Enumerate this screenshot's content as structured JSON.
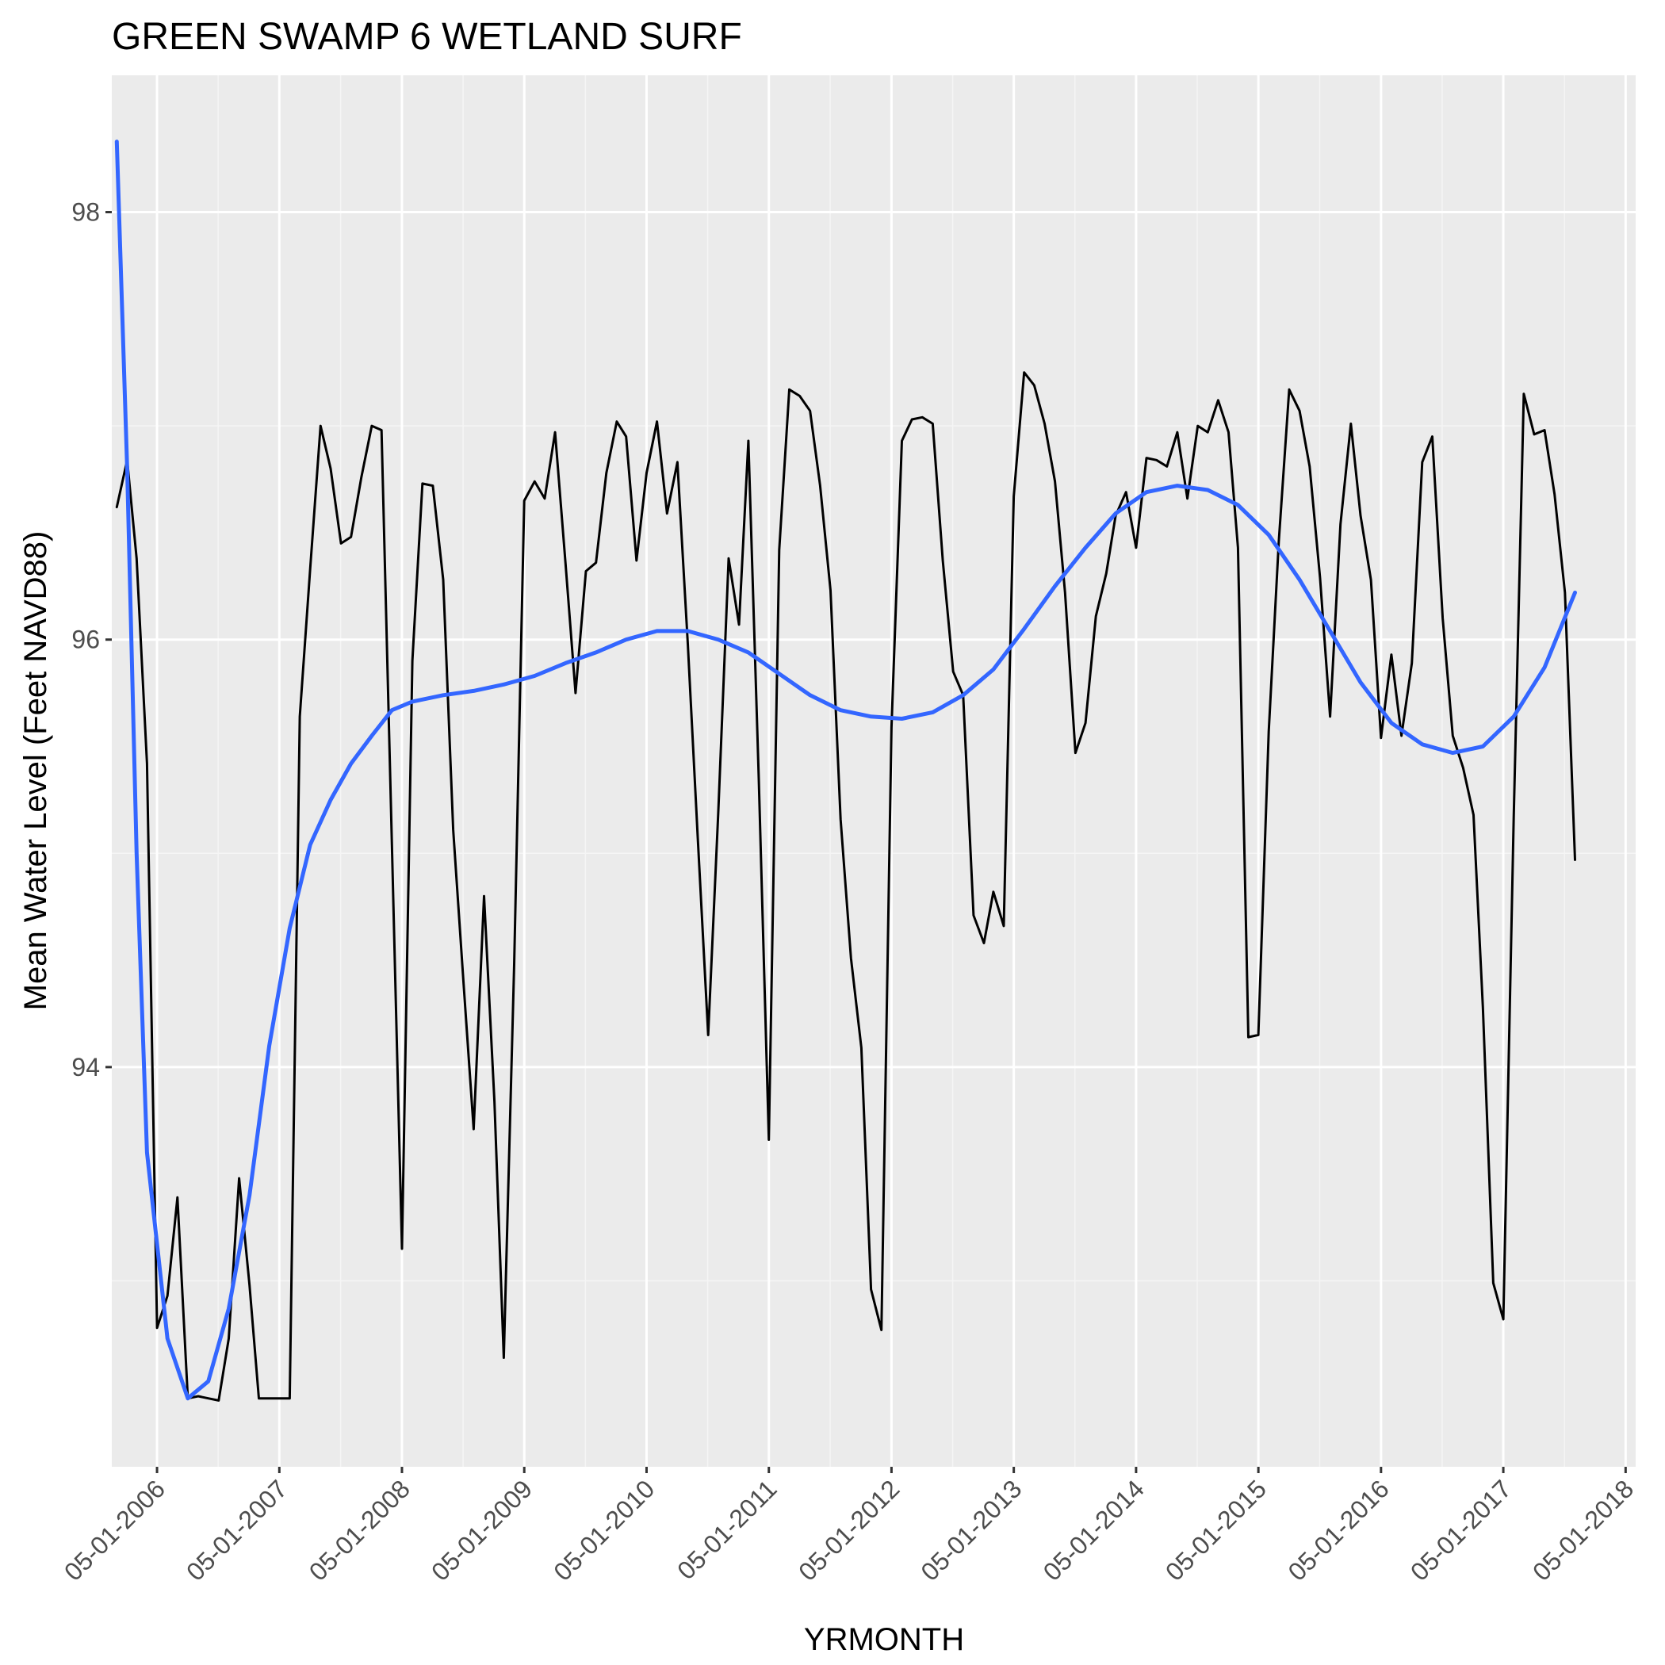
{
  "chart_data": {
    "type": "line",
    "title": "GREEN SWAMP 6 WETLAND SURF",
    "xlabel": "YRMONTH",
    "ylabel": "Mean Water Level (Feet NAVD88)",
    "x_tick_labels": [
      "05-01-2006",
      "05-01-2007",
      "05-01-2008",
      "05-01-2009",
      "05-01-2010",
      "05-01-2011",
      "05-01-2012",
      "05-01-2013",
      "05-01-2014",
      "05-01-2015",
      "05-01-2016",
      "05-01-2017",
      "05-01-2018"
    ],
    "y_ticks": [
      94,
      96,
      98
    ],
    "ylim": [
      92.13,
      98.64
    ],
    "xlim": [
      "2005-12-17",
      "2018-05-31"
    ],
    "grid": true,
    "colors": {
      "panel_background": "#EBEBEB",
      "grid_major": "#FFFFFF",
      "grid_minor": "#F5F5F5",
      "observed_line": "#000000",
      "smooth_line": "#3366FF",
      "tick_text": "#4D4D4D",
      "tick_mark": "#333333"
    },
    "series": [
      {
        "type": "line",
        "x": [
          "2006-01-01",
          "2006-02-01",
          "2006-03-01",
          "2006-04-01",
          "2006-05-01",
          "2006-06-01",
          "2006-07-01",
          "2006-08-01",
          "2006-09-01",
          "2006-10-01",
          "2006-11-01",
          "2006-12-01",
          "2007-01-01",
          "2007-02-01",
          "2007-03-01",
          "2007-04-01",
          "2007-05-01",
          "2007-06-01",
          "2007-07-01",
          "2007-08-01",
          "2007-09-01",
          "2007-10-01",
          "2007-11-01",
          "2007-12-01",
          "2008-01-01",
          "2008-02-01",
          "2008-03-01",
          "2008-04-01",
          "2008-05-01",
          "2008-06-01",
          "2008-07-01",
          "2008-08-01",
          "2008-09-01",
          "2008-10-01",
          "2008-11-01",
          "2008-12-01",
          "2009-01-01",
          "2009-02-01",
          "2009-03-01",
          "2009-04-01",
          "2009-05-01",
          "2009-06-01",
          "2009-07-01",
          "2009-08-01",
          "2009-09-01",
          "2009-10-01",
          "2009-11-01",
          "2009-12-01",
          "2010-01-01",
          "2010-02-01",
          "2010-03-01",
          "2010-04-01",
          "2010-05-01",
          "2010-06-01",
          "2010-07-01",
          "2010-08-01",
          "2010-09-01",
          "2010-10-01",
          "2010-11-01",
          "2010-12-01",
          "2011-01-01",
          "2011-02-01",
          "2011-03-01",
          "2011-04-01",
          "2011-05-01",
          "2011-06-01",
          "2011-07-01",
          "2011-08-01",
          "2011-09-01",
          "2011-10-01",
          "2011-11-01",
          "2011-12-01",
          "2012-01-01",
          "2012-02-01",
          "2012-03-01",
          "2012-04-01",
          "2012-05-01",
          "2012-06-01",
          "2012-07-01",
          "2012-08-01",
          "2012-09-01",
          "2012-10-01",
          "2012-11-01",
          "2012-12-01",
          "2013-01-01",
          "2013-02-01",
          "2013-03-01",
          "2013-04-01",
          "2013-05-01",
          "2013-06-01",
          "2013-07-01",
          "2013-08-01",
          "2013-09-01",
          "2013-10-01",
          "2013-11-01",
          "2013-12-01",
          "2014-01-01",
          "2014-02-01",
          "2014-03-01",
          "2014-04-01",
          "2014-05-01",
          "2014-06-01",
          "2014-07-01",
          "2014-08-01",
          "2014-09-01",
          "2014-10-01",
          "2014-11-01",
          "2014-12-01",
          "2015-01-01",
          "2015-02-01",
          "2015-03-01",
          "2015-04-01",
          "2015-05-01",
          "2015-06-01",
          "2015-07-01",
          "2015-08-01",
          "2015-09-01",
          "2015-10-01",
          "2015-11-01",
          "2015-12-01",
          "2016-01-01",
          "2016-02-01",
          "2016-03-01",
          "2016-04-01",
          "2016-05-01",
          "2016-06-01",
          "2016-07-01",
          "2016-08-01",
          "2016-09-01",
          "2016-10-01",
          "2016-11-01",
          "2016-12-01",
          "2017-01-01",
          "2017-02-01",
          "2017-03-01",
          "2017-04-01",
          "2017-05-01",
          "2017-06-01",
          "2017-07-01",
          "2017-08-01",
          "2017-09-01",
          "2017-10-01",
          "2017-11-01",
          "2017-12-01"
        ],
        "y": [
          96.62,
          96.84,
          96.38,
          95.42,
          92.78,
          92.93,
          93.39,
          92.45,
          92.46,
          92.45,
          92.44,
          92.73,
          93.48,
          92.98,
          92.45,
          92.45,
          92.45,
          92.45,
          95.64,
          96.33,
          97.0,
          96.8,
          96.45,
          96.48,
          96.76,
          97.0,
          96.98,
          95.04,
          93.15,
          95.9,
          96.73,
          96.72,
          96.28,
          95.11,
          94.39,
          93.71,
          94.8,
          93.84,
          92.64,
          94.48,
          96.65,
          96.74,
          96.66,
          96.97,
          96.36,
          95.75,
          96.32,
          96.36,
          96.78,
          97.02,
          96.95,
          96.37,
          96.78,
          97.02,
          96.59,
          96.83,
          95.98,
          95.07,
          94.15,
          95.19,
          96.38,
          96.07,
          96.93,
          95.35,
          93.66,
          96.42,
          97.17,
          97.14,
          97.07,
          96.72,
          96.23,
          95.16,
          94.51,
          94.09,
          92.96,
          92.77,
          95.59,
          96.93,
          97.03,
          97.04,
          97.01,
          96.37,
          95.85,
          95.74,
          94.71,
          94.58,
          94.82,
          94.66,
          96.67,
          97.25,
          97.19,
          97.01,
          96.74,
          96.22,
          95.47,
          95.61,
          96.11,
          96.31,
          96.58,
          96.69,
          96.43,
          96.85,
          96.84,
          96.81,
          96.97,
          96.66,
          97.0,
          96.97,
          97.12,
          96.97,
          96.43,
          94.14,
          94.15,
          95.57,
          96.46,
          97.17,
          97.07,
          96.81,
          96.29,
          95.64,
          96.54,
          97.01,
          96.58,
          96.28,
          95.54,
          95.93,
          95.55,
          95.89,
          96.83,
          96.95,
          96.1,
          95.55,
          95.4,
          95.18,
          94.28,
          92.99,
          92.82,
          95.17,
          97.15,
          96.96,
          96.98,
          96.68,
          96.22,
          94.97
        ]
      },
      {
        "type": "smooth",
        "x": [
          "2006-01-01",
          "2006-02-01",
          "2006-03-01",
          "2006-04-01",
          "2006-06-01",
          "2006-08-01",
          "2006-10-01",
          "2006-12-01",
          "2007-02-01",
          "2007-04-01",
          "2007-06-01",
          "2007-08-01",
          "2007-10-01",
          "2007-12-01",
          "2008-02-01",
          "2008-04-01",
          "2008-06-01",
          "2008-09-01",
          "2008-12-01",
          "2009-03-01",
          "2009-06-01",
          "2009-09-01",
          "2009-12-01",
          "2010-03-01",
          "2010-06-01",
          "2010-09-01",
          "2010-12-01",
          "2011-03-01",
          "2011-06-01",
          "2011-09-01",
          "2011-12-01",
          "2012-03-01",
          "2012-06-01",
          "2012-09-01",
          "2012-12-01",
          "2013-03-01",
          "2013-06-01",
          "2013-09-01",
          "2013-12-01",
          "2014-03-01",
          "2014-06-01",
          "2014-09-01",
          "2014-12-01",
          "2015-03-01",
          "2015-06-01",
          "2015-09-01",
          "2015-12-01",
          "2016-03-01",
          "2016-06-01",
          "2016-09-01",
          "2016-12-01",
          "2017-03-01",
          "2017-06-01",
          "2017-09-01",
          "2017-12-01"
        ],
        "y": [
          98.33,
          96.8,
          95.0,
          93.6,
          92.73,
          92.45,
          92.53,
          92.87,
          93.4,
          94.1,
          94.65,
          95.04,
          95.25,
          95.42,
          95.55,
          95.67,
          95.71,
          95.74,
          95.76,
          95.79,
          95.83,
          95.89,
          95.94,
          96.0,
          96.04,
          96.04,
          96.0,
          95.94,
          95.84,
          95.74,
          95.67,
          95.64,
          95.63,
          95.66,
          95.74,
          95.86,
          96.05,
          96.25,
          96.43,
          96.59,
          96.69,
          96.72,
          96.7,
          96.63,
          96.49,
          96.28,
          96.04,
          95.8,
          95.61,
          95.51,
          95.47,
          95.5,
          95.64,
          95.87,
          96.22
        ]
      }
    ]
  }
}
